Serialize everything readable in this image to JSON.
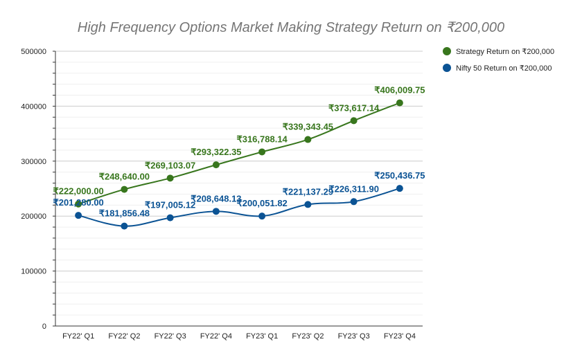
{
  "chart_data": {
    "type": "line",
    "title": "High Frequency Options Market Making Strategy Return on ₹200,000",
    "categories": [
      "FY22' Q1",
      "FY22' Q2",
      "FY22' Q3",
      "FY22' Q4",
      "FY23' Q1",
      "FY23' Q2",
      "FY23' Q3",
      "FY23' Q4"
    ],
    "ylim": [
      0,
      500000
    ],
    "yticks": [
      0,
      100000,
      200000,
      300000,
      400000,
      500000
    ],
    "grid": true,
    "legend_position": "right",
    "series": [
      {
        "name": "Strategy Return on ₹200,000",
        "color": "#38761d",
        "values": [
          222000,
          248640,
          269103.07,
          293322.35,
          316788.14,
          339343.45,
          373617.14,
          406009.75
        ],
        "labels": [
          "₹222,000.00",
          "₹248,640.00",
          "₹269,103.07",
          "₹293,322.35",
          "₹316,788.14",
          "₹339,343.45",
          "₹373,617.14",
          "₹406,009.75"
        ]
      },
      {
        "name": "Nifty 50 Return on ₹200,000",
        "color": "#0b5394",
        "values": [
          201280,
          181856.48,
          197005.12,
          208648.13,
          200051.82,
          221137.29,
          226311.9,
          250436.75
        ],
        "labels": [
          "₹201,280.00",
          "₹181,856.48",
          "₹197,005.12",
          "₹208,648.13",
          "₹200,051.82",
          "₹221,137.29",
          "₹226,311.90",
          "₹250,436.75"
        ]
      }
    ]
  }
}
